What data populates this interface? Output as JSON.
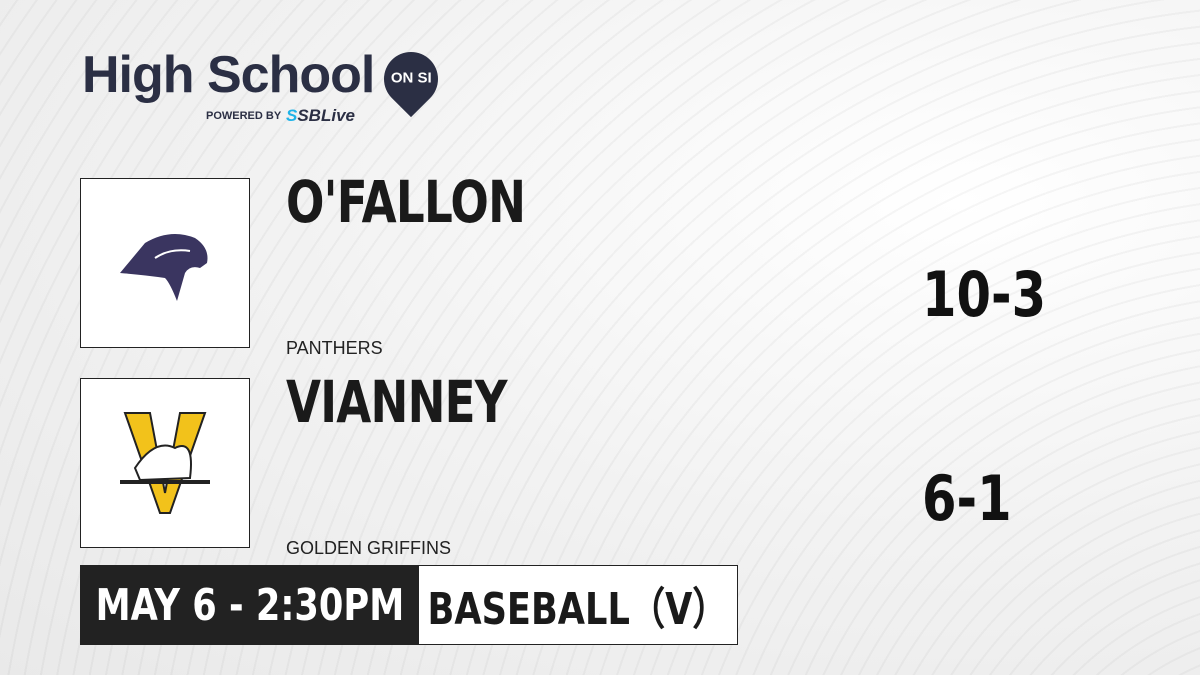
{
  "brand": {
    "title": "High School",
    "badge": "ON SI",
    "powered_by": "POWERED BY",
    "partner_prefix": "S",
    "partner": "SBLive"
  },
  "teams": [
    {
      "name": "O'FALLON",
      "mascot": "PANTHERS",
      "record": "10-3",
      "logo_icon": "panther-icon"
    },
    {
      "name": "VIANNEY",
      "mascot": "GOLDEN GRIFFINS",
      "record": "6-1",
      "logo_icon": "griffin-v-icon"
    }
  ],
  "game": {
    "datetime": "MAY 6 - 2:30PM",
    "sport": "BASEBALL（V）"
  }
}
